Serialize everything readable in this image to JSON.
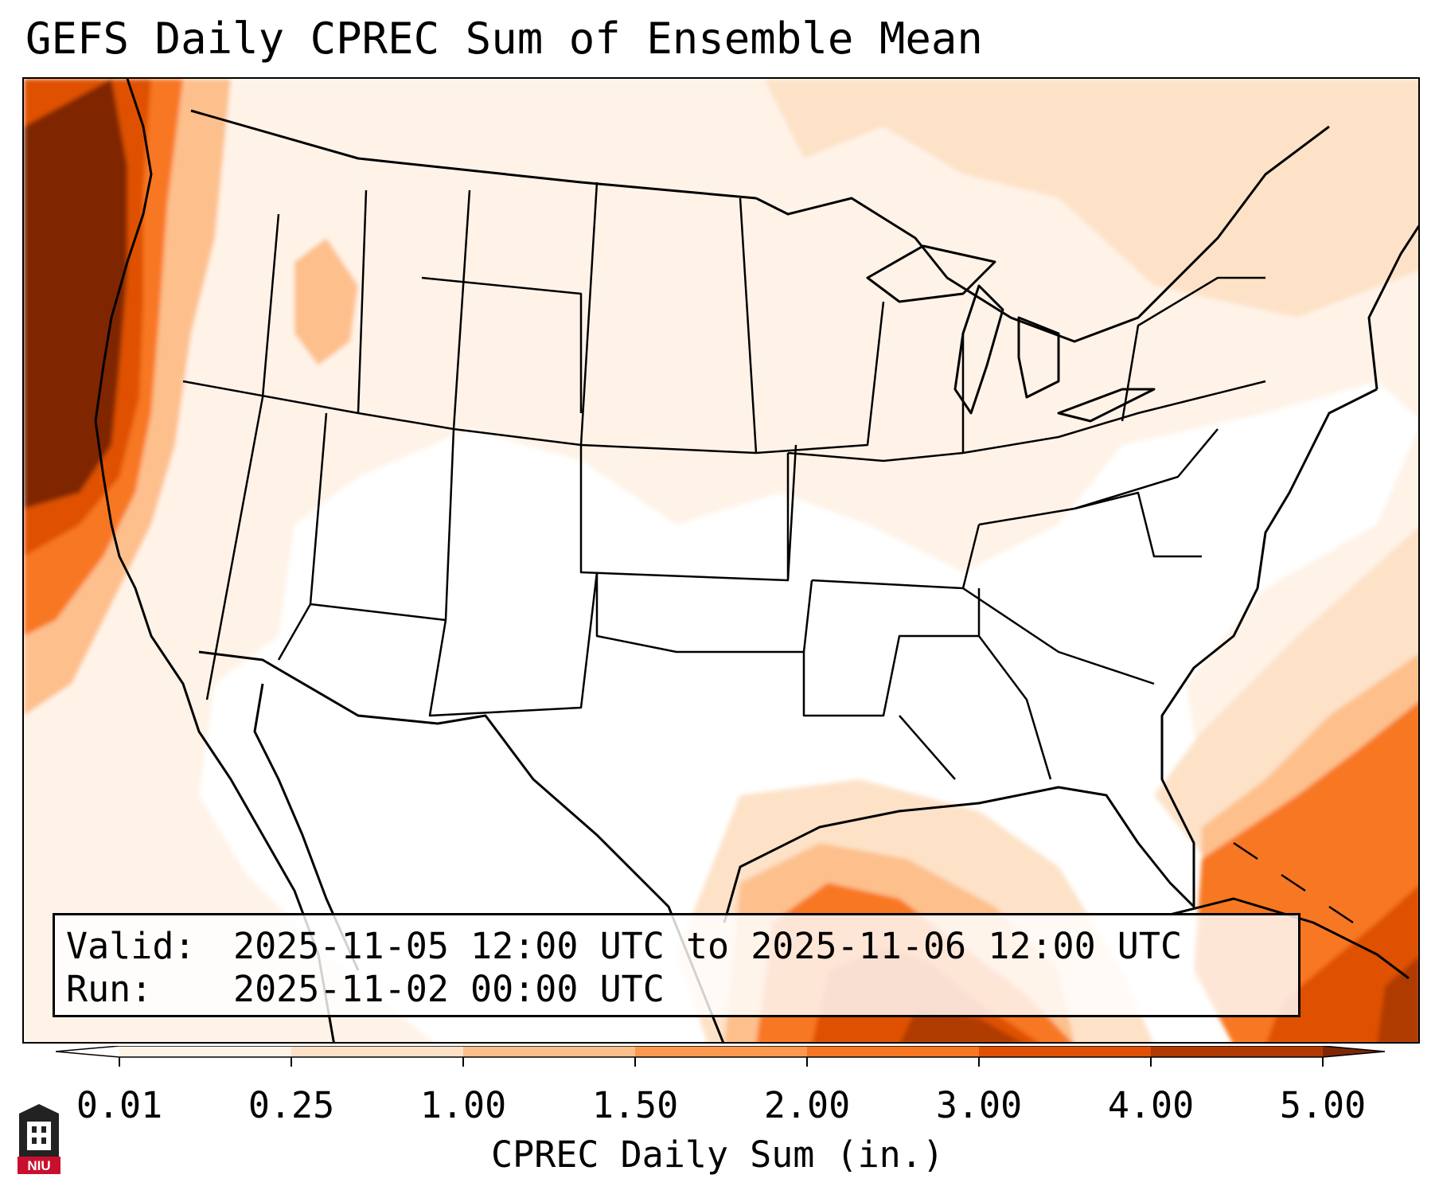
{
  "title": "GEFS Daily CPREC Sum of Ensemble Mean",
  "info": {
    "valid_label": "Valid:",
    "valid_value": "2025-11-05 12:00 UTC to 2025-11-06 12:00 UTC",
    "run_label": "Run:",
    "run_value": "2025-11-02 00:00 UTC"
  },
  "colorbar": {
    "label": "CPREC Daily Sum (in.)",
    "ticks": [
      "0.01",
      "0.25",
      "1.00",
      "1.50",
      "2.00",
      "3.00",
      "4.00",
      "5.00"
    ],
    "colors": {
      "under": "#ffffff",
      "c1": "#fff3e8",
      "c2": "#fde2c8",
      "c3": "#fdc08c",
      "c4": "#fd9a50",
      "c5": "#f87722",
      "c6": "#df5106",
      "c7": "#b03a02",
      "over": "#7f2704"
    }
  },
  "logo": {
    "text": "NIU",
    "color": "#c8102e"
  }
}
